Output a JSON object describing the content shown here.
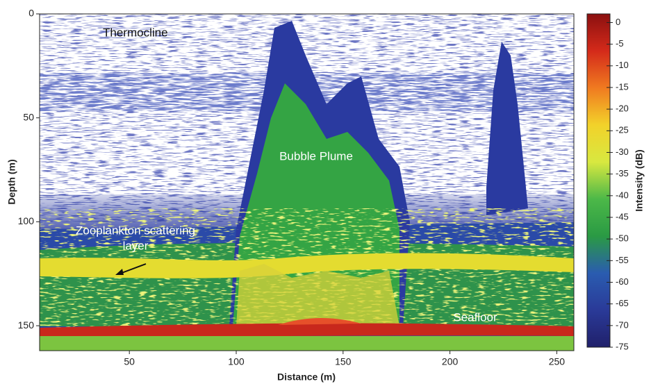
{
  "chart_data": {
    "type": "echogram",
    "xlabel": "Distance (m)",
    "ylabel": "Depth (m)",
    "xlim": [
      8,
      258
    ],
    "xticks": [
      50,
      100,
      150,
      200,
      250
    ],
    "ylim": [
      0,
      162
    ],
    "yticks": [
      0,
      50,
      100,
      150
    ],
    "y_inverted": true,
    "colorbar": {
      "label": "Intensity (dB)",
      "zlim": [
        -75,
        2
      ],
      "zticks": [
        0,
        -5,
        -10,
        -15,
        -20,
        -25,
        -30,
        -35,
        -40,
        -45,
        -50,
        -55,
        -60,
        -65,
        -70,
        -75
      ],
      "colormap": [
        "#8b1010",
        "#d42a1a",
        "#f07a20",
        "#f2d22a",
        "#d8e840",
        "#4cb848",
        "#2a9a44",
        "#2a5cb0",
        "#2a3a98",
        "#20206a"
      ]
    },
    "annotations": [
      {
        "lines": [
          "Thermocline"
        ]
      },
      {
        "lines": [
          "Bubble Plume"
        ]
      },
      {
        "lines": [
          "Zooplankton scattering",
          "layer"
        ]
      },
      {
        "lines": [
          "Seafloor"
        ]
      }
    ]
  }
}
